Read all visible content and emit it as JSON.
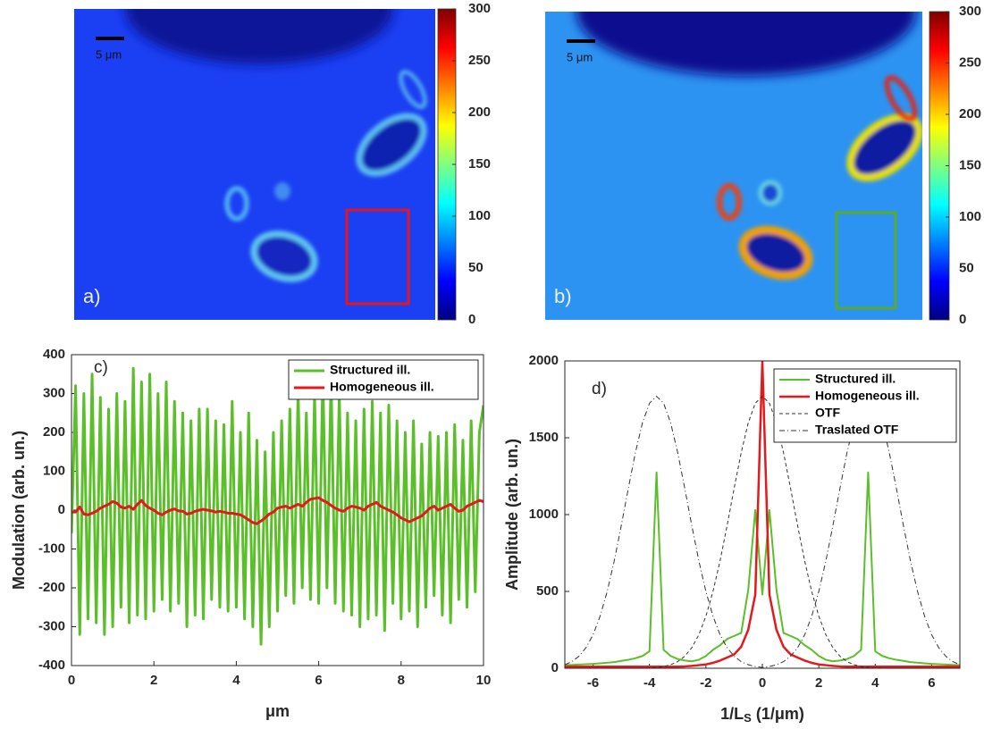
{
  "chart_data": [
    {
      "type": "image",
      "panel_label": "a)",
      "scale_bar_label": "5 μm",
      "colorbar": {
        "zlim": [
          0,
          300
        ],
        "zticks": [
          0,
          50,
          100,
          150,
          200,
          250,
          300
        ]
      }
    },
    {
      "type": "image",
      "panel_label": "b)",
      "scale_bar_label": "5 μm",
      "colorbar": {
        "zlim": [
          0,
          300
        ],
        "zticks": [
          0,
          50,
          100,
          150,
          200,
          250,
          300
        ]
      }
    },
    {
      "type": "line",
      "panel_label": "c)",
      "xlabel": "μm",
      "ylabel": "Modulation (arb. un.)",
      "legend": "upper right",
      "xlim": [
        0,
        10
      ],
      "xticks": [
        0,
        2,
        4,
        6,
        8,
        10
      ],
      "ylim": [
        -400,
        400
      ],
      "yticks": [
        -400,
        -300,
        -200,
        -100,
        0,
        100,
        200,
        300,
        400
      ],
      "x": [
        0,
        0.1,
        0.2,
        0.3,
        0.4,
        0.5,
        0.6,
        0.7,
        0.8,
        0.9,
        1,
        1.1,
        1.2,
        1.3,
        1.4,
        1.5,
        1.6,
        1.7,
        1.8,
        1.9,
        2,
        2.1,
        2.2,
        2.3,
        2.4,
        2.5,
        2.6,
        2.7,
        2.8,
        2.9,
        3,
        3.1,
        3.2,
        3.3,
        3.4,
        3.5,
        3.6,
        3.7,
        3.8,
        3.9,
        4,
        4.1,
        4.2,
        4.3,
        4.4,
        4.5,
        4.6,
        4.7,
        4.8,
        4.9,
        5,
        5.1,
        5.2,
        5.3,
        5.4,
        5.5,
        5.6,
        5.7,
        5.8,
        5.9,
        6,
        6.1,
        6.2,
        6.3,
        6.4,
        6.5,
        6.6,
        6.7,
        6.8,
        6.9,
        7,
        7.1,
        7.2,
        7.3,
        7.4,
        7.5,
        7.6,
        7.7,
        7.8,
        7.9,
        8,
        8.1,
        8.2,
        8.3,
        8.4,
        8.5,
        8.6,
        8.7,
        8.8,
        8.9,
        9,
        9.1,
        9.2,
        9.3,
        9.4,
        9.5,
        9.6,
        9.7,
        9.8,
        9.9,
        10
      ],
      "series": [
        {
          "name": "Structured ill.",
          "color": "#5bbf2a",
          "width": 3,
          "linestyle": "-",
          "values": [
            -60,
            320,
            -320,
            300,
            -280,
            350,
            -290,
            290,
            -320,
            260,
            -300,
            300,
            -250,
            280,
            -290,
            365,
            -270,
            330,
            -280,
            350,
            -260,
            300,
            -230,
            330,
            -260,
            280,
            -240,
            250,
            -300,
            230,
            -270,
            260,
            -280,
            260,
            -230,
            230,
            -250,
            220,
            -260,
            280,
            -250,
            200,
            -280,
            250,
            -300,
            180,
            -345,
            150,
            -300,
            200,
            -260,
            230,
            -220,
            260,
            -240,
            310,
            -200,
            250,
            -230,
            300,
            -240,
            350,
            -200,
            340,
            -240,
            300,
            -260,
            250,
            -270,
            230,
            -300,
            260,
            -280,
            280,
            -270,
            250,
            -310,
            270,
            -240,
            230,
            -280,
            200,
            -260,
            230,
            -300,
            170,
            -250,
            200,
            -220,
            190,
            -270,
            200,
            -290,
            220,
            -230,
            180,
            -250,
            230,
            -210,
            200,
            270
          ]
        },
        {
          "name": "Homogeneous ill.",
          "color": "#e3191c",
          "width": 3,
          "linestyle": "-",
          "values": [
            -5,
            -5,
            8,
            -10,
            -12,
            -8,
            -3,
            5,
            10,
            15,
            22,
            18,
            8,
            5,
            10,
            2,
            15,
            25,
            12,
            5,
            0,
            -8,
            -12,
            -5,
            0,
            3,
            -2,
            -3,
            -10,
            -8,
            -3,
            0,
            2,
            0,
            -2,
            -5,
            -3,
            -5,
            -8,
            -8,
            -10,
            -12,
            -18,
            -25,
            -32,
            -35,
            -28,
            -20,
            -10,
            -5,
            5,
            8,
            10,
            5,
            10,
            15,
            10,
            20,
            28,
            30,
            32,
            25,
            20,
            12,
            5,
            0,
            -3,
            5,
            10,
            8,
            5,
            0,
            10,
            15,
            20,
            10,
            5,
            0,
            -5,
            -12,
            -20,
            -25,
            -30,
            -25,
            -20,
            -15,
            -5,
            5,
            10,
            0,
            5,
            10,
            15,
            5,
            -3,
            0,
            10,
            15,
            20,
            25,
            22
          ]
        }
      ]
    },
    {
      "type": "line",
      "panel_label": "d)",
      "xlabel": [
        "1/L",
        "S",
        " (1/μm)"
      ],
      "ylabel": "Amplitude (arb. un.)",
      "legend": "upper right",
      "xlim": [
        -7,
        7
      ],
      "xticks": [
        -6,
        -4,
        -2,
        0,
        2,
        4,
        6
      ],
      "ylim": [
        0,
        2000
      ],
      "yticks": [
        0,
        500,
        1000,
        1500,
        2000
      ],
      "x": [
        -7,
        -6.75,
        -6.5,
        -6.25,
        -6,
        -5.75,
        -5.5,
        -5.25,
        -5,
        -4.75,
        -4.5,
        -4.25,
        -4,
        -3.75,
        -3.5,
        -3.25,
        -3,
        -2.75,
        -2.5,
        -2.25,
        -2,
        -1.75,
        -1.5,
        -1.25,
        -1,
        -0.75,
        -0.5,
        -0.25,
        0,
        0.25,
        0.5,
        0.75,
        1,
        1.25,
        1.5,
        1.75,
        2,
        2.25,
        2.5,
        2.75,
        3,
        3.25,
        3.5,
        3.75,
        4,
        4.25,
        4.5,
        4.75,
        5,
        5.25,
        5.5,
        5.75,
        6,
        6.25,
        6.5,
        6.75,
        7
      ],
      "series": [
        {
          "name": "Structured ill.",
          "color": "#5bbf2a",
          "width": 2,
          "linestyle": "-",
          "values": [
            20,
            22,
            24,
            26,
            28,
            32,
            36,
            40,
            48,
            55,
            65,
            80,
            110,
            1275,
            120,
            80,
            60,
            50,
            45,
            55,
            80,
            120,
            150,
            190,
            210,
            230,
            510,
            1030,
            480,
            1030,
            510,
            230,
            210,
            190,
            150,
            120,
            80,
            55,
            45,
            50,
            60,
            80,
            120,
            1275,
            110,
            80,
            65,
            55,
            48,
            40,
            36,
            32,
            28,
            26,
            24,
            22,
            20
          ]
        },
        {
          "name": "Homogeneous ill.",
          "color": "#e3191c",
          "width": 2.5,
          "linestyle": "-",
          "values": [
            10,
            10,
            10,
            10,
            10,
            10,
            10,
            10,
            10,
            10,
            10,
            10,
            10,
            10,
            10,
            10,
            10,
            12,
            15,
            20,
            25,
            35,
            50,
            70,
            90,
            140,
            250,
            480,
            2000,
            480,
            250,
            140,
            90,
            70,
            50,
            35,
            25,
            20,
            15,
            12,
            10,
            10,
            10,
            10,
            10,
            10,
            10,
            10,
            10,
            10,
            10,
            10,
            10,
            10,
            10,
            10,
            10
          ]
        },
        {
          "name": "OTF",
          "color": "#333333",
          "width": 1,
          "linestyle": "--",
          "values": [
            0,
            0,
            0,
            0,
            0,
            0,
            0,
            0,
            0,
            0,
            0,
            1,
            2,
            5,
            11,
            23,
            43,
            78,
            134,
            218,
            339,
            499,
            698,
            928,
            1171,
            1403,
            1597,
            1725,
            1770,
            1725,
            1597,
            1403,
            1171,
            928,
            698,
            499,
            339,
            218,
            134,
            78,
            43,
            23,
            11,
            5,
            2,
            1,
            0,
            0,
            0,
            0,
            0,
            0,
            0,
            0,
            0,
            0,
            0
          ]
        },
        {
          "name": "Traslated OTF",
          "color": "#333333",
          "width": 1,
          "linestyle": "-.",
          "values": [
            23,
            43,
            78,
            134,
            218,
            339,
            499,
            698,
            928,
            1171,
            1403,
            1597,
            1725,
            1770,
            1725,
            1597,
            1403,
            1171,
            928,
            698,
            499,
            339,
            218,
            134,
            78,
            43,
            23,
            11,
            5,
            11,
            23,
            43,
            78,
            134,
            218,
            339,
            499,
            698,
            928,
            1171,
            1403,
            1597,
            1725,
            1770,
            1725,
            1597,
            1403,
            1171,
            928,
            698,
            499,
            339,
            218,
            134,
            78,
            43,
            23
          ]
        }
      ]
    }
  ]
}
